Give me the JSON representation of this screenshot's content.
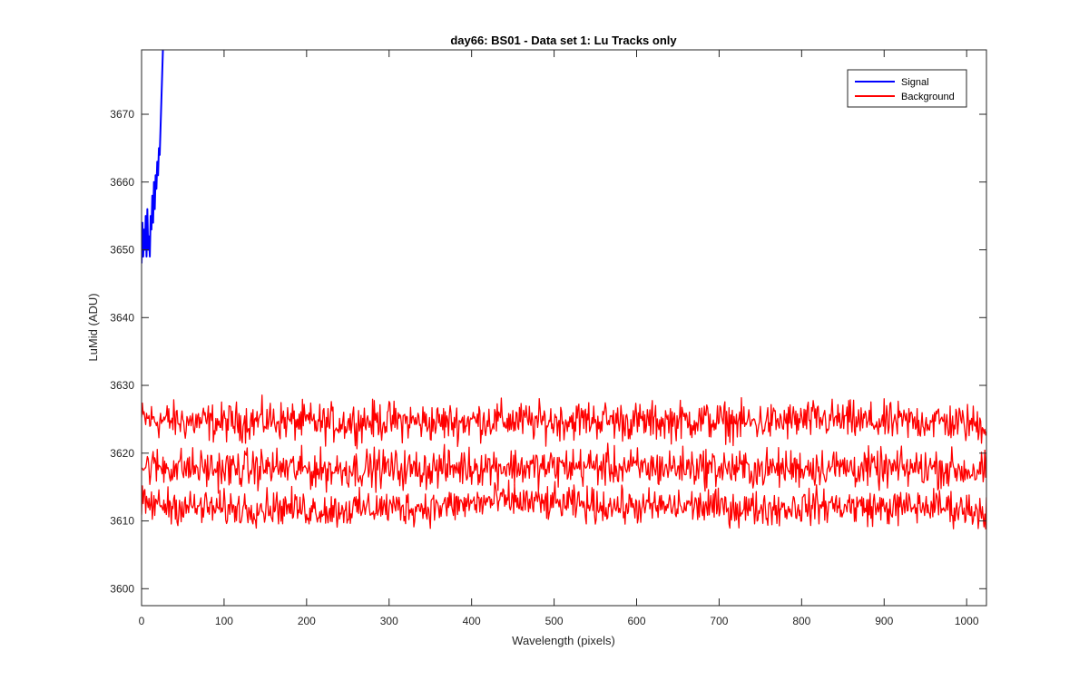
{
  "chart_data": {
    "type": "line",
    "title": "day66: BS01 - Data set 1: Lu Tracks only",
    "xlabel": "Wavelength (pixels)",
    "ylabel": "LuMid (ADU)",
    "xlim": [
      0,
      1024
    ],
    "ylim": [
      3597.5,
      3679.5
    ],
    "xticks": [
      0,
      100,
      200,
      300,
      400,
      500,
      600,
      700,
      800,
      900,
      1000
    ],
    "yticks": [
      3600,
      3610,
      3620,
      3630,
      3640,
      3650,
      3660,
      3670
    ],
    "grid": false,
    "legend": {
      "placement": "top-right",
      "entries": [
        "Signal",
        "Background"
      ]
    },
    "colors": {
      "signal": "#0000ff",
      "background": "#ff0000",
      "axes": "#262626"
    },
    "series": [
      {
        "name": "Signal",
        "color": "#0000ff",
        "x": [
          0,
          1,
          2,
          3,
          4,
          5,
          6,
          7,
          8,
          9,
          10,
          11,
          12,
          13,
          14,
          15,
          16,
          17,
          18,
          19,
          20,
          21,
          22,
          23,
          24,
          25,
          26
        ],
        "y": [
          3648,
          3654,
          3649,
          3653,
          3650,
          3655,
          3649,
          3656,
          3650,
          3652,
          3649,
          3655,
          3653,
          3658,
          3654,
          3660,
          3656,
          3661,
          3659,
          3663,
          3661,
          3665,
          3664,
          3668,
          3672,
          3676,
          3680
        ]
      },
      {
        "name": "Background",
        "color": "#ff0000",
        "x": [
          0,
          32,
          64,
          96,
          128,
          160,
          192,
          224,
          256,
          288,
          320,
          352,
          384,
          416,
          448,
          480,
          512,
          544,
          576,
          608,
          640,
          672,
          704,
          736,
          768,
          800,
          832,
          864,
          896,
          928,
          960,
          992,
          1024
        ],
        "y": [
          3625,
          3624.8,
          3624.6,
          3624.5,
          3624.7,
          3624.9,
          3624.6,
          3624.4,
          3624.6,
          3624.8,
          3624.7,
          3624.5,
          3624.6,
          3624.9,
          3624.8,
          3624.6,
          3624.8,
          3625,
          3624.8,
          3624.6,
          3624.7,
          3624.9,
          3624.7,
          3624.5,
          3624.6,
          3624.8,
          3625,
          3624.7,
          3624.5,
          3624.6,
          3624.8,
          3624.4,
          3624.2
        ],
        "noise": 2.0
      },
      {
        "name": "",
        "color": "#ff0000",
        "x": [
          0,
          32,
          64,
          96,
          128,
          160,
          192,
          224,
          256,
          288,
          320,
          352,
          384,
          416,
          448,
          480,
          512,
          544,
          576,
          608,
          640,
          672,
          704,
          736,
          768,
          800,
          832,
          864,
          896,
          928,
          960,
          992,
          1024
        ],
        "y": [
          3618,
          3618,
          3617.8,
          3617.6,
          3617.7,
          3617.9,
          3617.6,
          3617.5,
          3617.7,
          3617.8,
          3617.6,
          3617.7,
          3617.9,
          3618.1,
          3618,
          3617.8,
          3618,
          3618.1,
          3617.9,
          3617.8,
          3617.9,
          3618,
          3617.8,
          3617.6,
          3617.7,
          3617.9,
          3618,
          3617.8,
          3617.6,
          3617.7,
          3617.9,
          3617.5,
          3617.3
        ],
        "noise": 2.0
      },
      {
        "name": "",
        "color": "#ff0000",
        "x": [
          0,
          32,
          64,
          96,
          128,
          160,
          192,
          224,
          256,
          288,
          320,
          352,
          384,
          416,
          448,
          480,
          512,
          544,
          576,
          608,
          640,
          672,
          704,
          736,
          768,
          800,
          832,
          864,
          896,
          928,
          960,
          992,
          1024
        ],
        "y": [
          3612.5,
          3612.3,
          3612,
          3611.8,
          3611.9,
          3612.1,
          3611.8,
          3611.6,
          3611.7,
          3612,
          3611.9,
          3612,
          3612.3,
          3612.8,
          3613,
          3612.6,
          3612.5,
          3612.3,
          3612.2,
          3612,
          3612.1,
          3612.2,
          3612,
          3611.8,
          3611.9,
          3612.1,
          3612.3,
          3612.1,
          3611.9,
          3612,
          3612.2,
          3611.8,
          3611.5
        ],
        "noise": 1.8
      }
    ]
  }
}
